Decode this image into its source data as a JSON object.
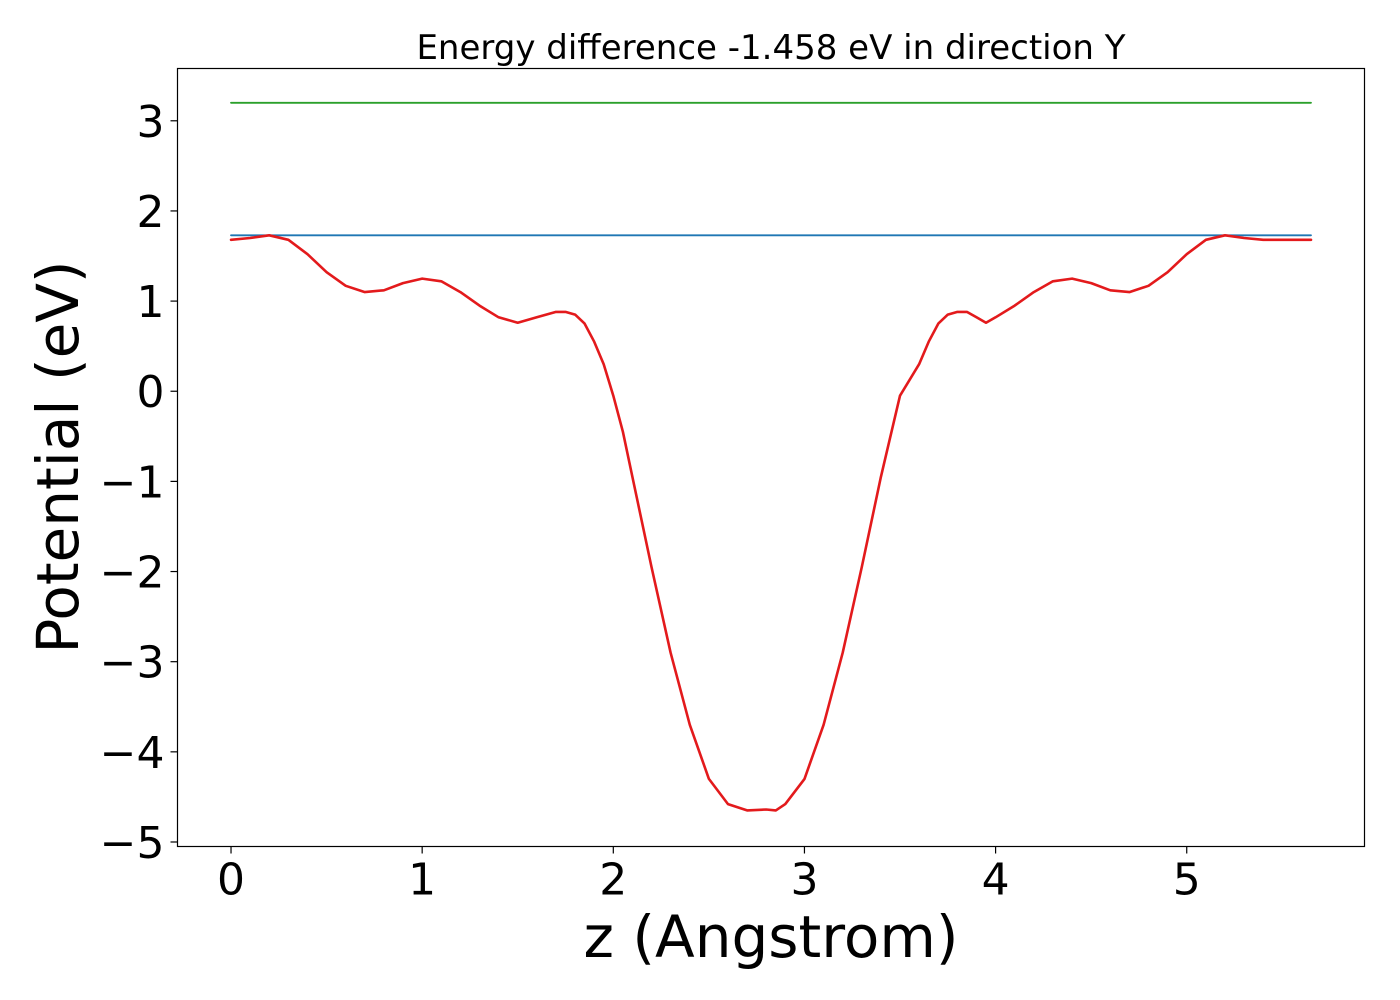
{
  "chart_data": {
    "type": "line",
    "title": "Energy difference -1.458 eV in direction Y",
    "xlabel": "z (Angstrom)",
    "ylabel": "Potential (eV)",
    "xlim": [
      -0.28,
      5.93
    ],
    "ylim": [
      -5.05,
      3.58
    ],
    "xticks": [
      0,
      1,
      2,
      3,
      4,
      5
    ],
    "xtick_labels": [
      "0",
      "1",
      "2",
      "3",
      "4",
      "5"
    ],
    "yticks": [
      3,
      2,
      1,
      0,
      -1,
      -2,
      -3,
      -4,
      -5
    ],
    "ytick_labels": [
      "3",
      "2",
      "1",
      "0",
      "−1",
      "−2",
      "−3",
      "−4",
      "−5"
    ],
    "grid": false,
    "series": [
      {
        "color": "#2ca02c",
        "x": [
          0,
          5.65
        ],
        "y": [
          3.2,
          3.2
        ]
      },
      {
        "color": "#1f77b4",
        "x": [
          0,
          5.65
        ],
        "y": [
          1.73,
          1.73
        ]
      },
      {
        "color": "#e31a1c",
        "x": [
          0,
          0.1,
          0.2,
          0.3,
          0.4,
          0.5,
          0.6,
          0.7,
          0.8,
          0.9,
          1.0,
          1.1,
          1.2,
          1.3,
          1.4,
          1.5,
          1.6,
          1.7,
          1.75,
          1.8,
          1.85,
          1.9,
          1.95,
          2.0,
          2.05,
          2.1,
          2.2,
          2.3,
          2.4,
          2.5,
          2.6,
          2.7,
          2.8,
          2.85,
          2.9,
          3.0,
          3.1,
          3.2,
          3.3,
          3.4,
          3.5,
          3.6,
          3.65,
          3.7,
          3.75,
          3.8,
          3.85,
          3.9,
          3.95,
          4.0,
          4.1,
          4.2,
          4.3,
          4.4,
          4.5,
          4.6,
          4.7,
          4.8,
          4.9,
          5.0,
          5.1,
          5.2,
          5.3,
          5.4,
          5.5,
          5.6,
          5.65
        ],
        "y": [
          1.68,
          1.7,
          1.73,
          1.68,
          1.52,
          1.32,
          1.17,
          1.1,
          1.12,
          1.2,
          1.25,
          1.22,
          1.1,
          0.95,
          0.82,
          0.76,
          0.82,
          0.88,
          0.88,
          0.85,
          0.75,
          0.55,
          0.3,
          -0.05,
          -0.45,
          -0.95,
          -1.95,
          -2.9,
          -3.7,
          -4.3,
          -4.58,
          -4.65,
          -4.64,
          -4.65,
          -4.58,
          -4.3,
          -3.7,
          -2.9,
          -1.95,
          -0.95,
          -0.05,
          0.3,
          0.55,
          0.75,
          0.85,
          0.88,
          0.88,
          0.82,
          0.76,
          0.82,
          0.95,
          1.1,
          1.22,
          1.25,
          1.2,
          1.12,
          1.1,
          1.17,
          1.32,
          1.52,
          1.68,
          1.73,
          1.7,
          1.68,
          1.68,
          1.68,
          1.68
        ]
      }
    ]
  }
}
